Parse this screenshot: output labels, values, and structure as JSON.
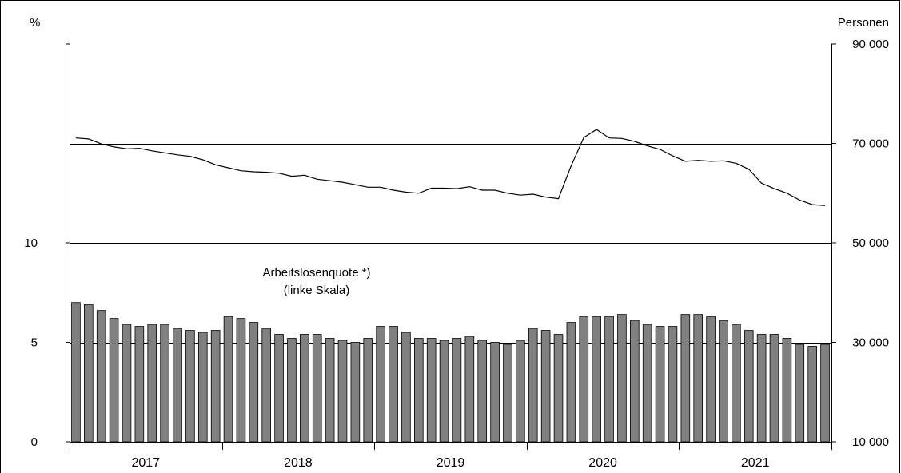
{
  "chart_data": {
    "type": "bar+line",
    "left_axis": {
      "unit": "%",
      "ylim": [
        0,
        20
      ],
      "ticks": [
        {
          "value": 0,
          "label": "0"
        },
        {
          "value": 5,
          "label": "5"
        },
        {
          "value": 10,
          "label": "10"
        }
      ]
    },
    "right_axis": {
      "unit": "Personen",
      "ylim": [
        10000,
        90000
      ],
      "ticks": [
        {
          "value": 10000,
          "label": "10 000"
        },
        {
          "value": 30000,
          "label": "30 000"
        },
        {
          "value": 50000,
          "label": "50 000"
        },
        {
          "value": 70000,
          "label": "70 000"
        },
        {
          "value": 90000,
          "label": "90 000"
        }
      ]
    },
    "gridlines": [
      5,
      10,
      15
    ],
    "years": [
      "2017",
      "2018",
      "2019",
      "2020",
      "2021"
    ],
    "months_per_year": 12,
    "annotation": {
      "line1": "Arbeitslosenquote *)",
      "line2": "(linke Skala)"
    },
    "series": [
      {
        "axis": "left",
        "kind": "bar",
        "color": "#808080",
        "values": [
          7.0,
          6.9,
          6.6,
          6.2,
          5.9,
          5.8,
          5.9,
          5.9,
          5.7,
          5.6,
          5.5,
          5.6,
          6.3,
          6.2,
          6.0,
          5.7,
          5.4,
          5.2,
          5.4,
          5.4,
          5.2,
          5.1,
          5.0,
          5.2,
          5.8,
          5.8,
          5.5,
          5.2,
          5.2,
          5.1,
          5.2,
          5.3,
          5.1,
          5.0,
          4.9,
          5.1,
          5.7,
          5.6,
          5.4,
          6.0,
          6.3,
          6.3,
          6.3,
          6.4,
          6.1,
          5.9,
          5.8,
          5.8,
          6.4,
          6.4,
          6.3,
          6.1,
          5.9,
          5.6,
          5.4,
          5.4,
          5.2,
          4.9,
          4.8,
          4.9
        ]
      },
      {
        "axis": "right",
        "kind": "line",
        "color": "#000000",
        "values": [
          71100,
          70900,
          69900,
          69300,
          68900,
          69000,
          68500,
          68100,
          67700,
          67400,
          66700,
          65700,
          65100,
          64500,
          64300,
          64200,
          64000,
          63400,
          63600,
          62800,
          62500,
          62200,
          61700,
          61200,
          61200,
          60600,
          60200,
          60000,
          61000,
          61000,
          60900,
          61300,
          60600,
          60600,
          60000,
          59600,
          59800,
          59200,
          58900,
          65500,
          71200,
          72800,
          71100,
          71000,
          70400,
          69500,
          68800,
          67500,
          66400,
          66600,
          66400,
          66500,
          66000,
          64800,
          62000,
          60900,
          60000,
          58600,
          57700,
          57500
        ]
      }
    ]
  }
}
